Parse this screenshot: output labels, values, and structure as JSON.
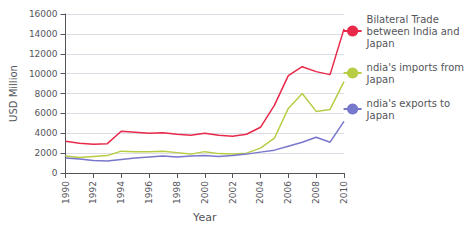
{
  "chart_data": {
    "type": "line",
    "xlabel": "Year",
    "ylabel": "USD Million",
    "x": [
      1990,
      1991,
      1992,
      1993,
      1994,
      1995,
      1996,
      1997,
      1998,
      1999,
      2000,
      2001,
      2002,
      2003,
      2004,
      2005,
      2006,
      2007,
      2008,
      2009,
      2010
    ],
    "series": [
      {
        "name": "Bilateral Trade\nbetween India and\nJapan",
        "color": "#e8294a",
        "values": [
          3200,
          3000,
          2900,
          2950,
          4200,
          4100,
          4000,
          4050,
          3900,
          3800,
          4000,
          3800,
          3700,
          3900,
          4600,
          6800,
          9800,
          10700,
          10200,
          9900,
          14500
        ]
      },
      {
        "name": "ndia's imports from\nJapan",
        "color": "#b8cc44",
        "values": [
          1700,
          1550,
          1650,
          1750,
          2200,
          2150,
          2150,
          2200,
          2050,
          1900,
          2150,
          1950,
          1900,
          2000,
          2500,
          3500,
          6500,
          8000,
          6200,
          6400,
          9200
        ]
      },
      {
        "name": "ndia's exports to\nJapan",
        "color": "#7777cc",
        "values": [
          1500,
          1400,
          1250,
          1200,
          1350,
          1500,
          1600,
          1700,
          1600,
          1700,
          1750,
          1650,
          1750,
          1900,
          2100,
          2300,
          2700,
          3100,
          3600,
          3100,
          5200
        ]
      }
    ],
    "xlim": [
      1990,
      2010
    ],
    "xticks": [
      1990,
      1992,
      1994,
      1996,
      1998,
      2000,
      2002,
      2004,
      2006,
      2008,
      2010
    ],
    "ylim": [
      0,
      16000
    ],
    "yticks": [
      0,
      2000,
      4000,
      6000,
      8000,
      10000,
      12000,
      14000,
      16000
    ],
    "grid": true,
    "legend": "right"
  }
}
